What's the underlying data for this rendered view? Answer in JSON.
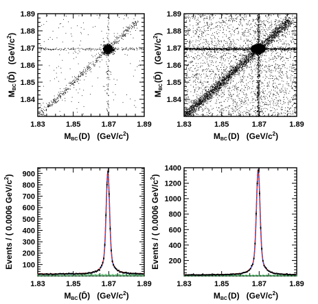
{
  "chart_data": [
    {
      "type": "scatter",
      "density": "low",
      "xlabel_main": "M",
      "xlabel_sub": "BC",
      "xlabel_arg": "(D)",
      "xlabel_unit": "(GeV/c",
      "xlabel_unit_sup": "2",
      "xlabel_unit_close": ")",
      "ylabel_main": "M",
      "ylabel_sub": "BC",
      "ylabel_arg": "(D̄)",
      "ylabel_unit": "(GeV/c",
      "ylabel_unit_sup": "2",
      "ylabel_unit_close": ")",
      "xlim": [
        1.83,
        1.89
      ],
      "ylim": [
        1.83,
        1.89
      ],
      "xticks": [
        "1.83",
        "1.85",
        "1.87",
        "1.89"
      ],
      "yticks": [
        "1.84",
        "1.85",
        "1.86",
        "1.87",
        "1.88",
        "1.89"
      ],
      "peak": [
        1.8695,
        1.8695
      ]
    },
    {
      "type": "scatter",
      "density": "high",
      "xlabel_main": "M",
      "xlabel_sub": "BC",
      "xlabel_arg": "(D)",
      "xlabel_unit": "(GeV/c",
      "xlabel_unit_sup": "2",
      "xlabel_unit_close": ")",
      "ylabel_main": "M",
      "ylabel_sub": "BC",
      "ylabel_arg": "(D̄)",
      "ylabel_unit": "(GeV/c",
      "ylabel_unit_sup": "2",
      "ylabel_unit_close": ")",
      "xlim": [
        1.83,
        1.89
      ],
      "ylim": [
        1.83,
        1.89
      ],
      "xticks": [
        "1.83",
        "1.85",
        "1.87",
        "1.89"
      ],
      "yticks": [
        "1.84",
        "1.85",
        "1.86",
        "1.87",
        "1.88",
        "1.89"
      ],
      "peak": [
        1.8695,
        1.8695
      ]
    },
    {
      "type": "line",
      "xlabel_main": "M",
      "xlabel_sub": "BC",
      "xlabel_arg": "(D̄)",
      "xlabel_unit": "(GeV/c",
      "xlabel_unit_sup": "2",
      "xlabel_unit_close": ")",
      "ylabel": "Events / ( 0.0006 GeV/c",
      "ylabel_sup": "2",
      "ylabel_close": ")",
      "xlim": [
        1.83,
        1.89
      ],
      "ylim": [
        0,
        950
      ],
      "xticks": [
        "1.83",
        "1.85",
        "1.87",
        "1.89"
      ],
      "yticks": [
        "100",
        "200",
        "300",
        "400",
        "500",
        "600",
        "700",
        "800",
        "900"
      ],
      "peak_x": 1.8695,
      "peak_y": 910,
      "background_level": 15,
      "series": [
        {
          "color": "#e63030"
        },
        {
          "color": "#2a4fd8"
        },
        {
          "color": "#2ea84a"
        }
      ]
    },
    {
      "type": "line",
      "xlabel_main": "M",
      "xlabel_sub": "BC",
      "xlabel_arg": "(D)",
      "xlabel_unit": "(GeV/c",
      "xlabel_unit_sup": "2",
      "xlabel_unit_close": ")",
      "ylabel": "Events / ( 0.0006 GeV/c",
      "ylabel_sup": "2",
      "ylabel_close": ")",
      "xlim": [
        1.83,
        1.89
      ],
      "ylim": [
        0,
        1400
      ],
      "xticks": [
        "1.83",
        "1.85",
        "1.87",
        "1.89"
      ],
      "yticks": [
        "200",
        "400",
        "600",
        "800",
        "1000",
        "1200",
        "1400"
      ],
      "peak_x": 1.8695,
      "peak_y": 1370,
      "background_level": 12,
      "series": [
        {
          "color": "#e63030"
        },
        {
          "color": "#2a4fd8"
        },
        {
          "color": "#2ea84a"
        }
      ]
    }
  ]
}
